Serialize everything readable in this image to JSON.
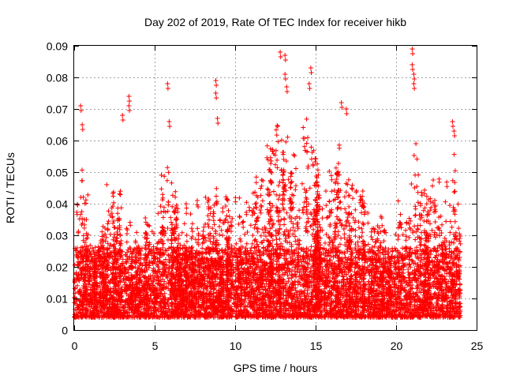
{
  "chart_data": {
    "type": "scatter",
    "title": "Day 202 of 2019, Rate Of TEC Index for receiver hikb",
    "xlabel": "GPS time / hours",
    "ylabel": "ROTI / TECUs",
    "xlim": [
      0,
      25
    ],
    "ylim": [
      0,
      0.09
    ],
    "xticks": [
      0,
      5,
      10,
      15,
      20,
      25
    ],
    "yticks": [
      0,
      0.01,
      0.02,
      0.03,
      0.04,
      0.05,
      0.06,
      0.07,
      0.08,
      0.09
    ],
    "xtick_labels": [
      "0",
      "5",
      "10",
      "15",
      "20",
      "25"
    ],
    "ytick_labels": [
      "0",
      "0.01",
      "0.02",
      "0.03",
      "0.04",
      "0.05",
      "0.06",
      "0.07",
      "0.08",
      "0.09"
    ],
    "grid": true,
    "marker": "+",
    "color": "#ff0000",
    "series": [
      {
        "name": "ROTI",
        "x_range": [
          0,
          24
        ],
        "baseline_low": 0.007,
        "baseline_high": 0.022,
        "notable_points": [
          {
            "x": 0.4,
            "y": 0.071
          },
          {
            "x": 0.5,
            "y": 0.065
          },
          {
            "x": 3.4,
            "y": 0.074
          },
          {
            "x": 3.4,
            "y": 0.071
          },
          {
            "x": 3.0,
            "y": 0.068
          },
          {
            "x": 5.8,
            "y": 0.078
          },
          {
            "x": 5.9,
            "y": 0.066
          },
          {
            "x": 8.8,
            "y": 0.079
          },
          {
            "x": 8.8,
            "y": 0.075
          },
          {
            "x": 8.9,
            "y": 0.067
          },
          {
            "x": 12.8,
            "y": 0.088
          },
          {
            "x": 13.1,
            "y": 0.087
          },
          {
            "x": 13.1,
            "y": 0.081
          },
          {
            "x": 13.2,
            "y": 0.077
          },
          {
            "x": 14.7,
            "y": 0.083
          },
          {
            "x": 14.6,
            "y": 0.078
          },
          {
            "x": 16.6,
            "y": 0.072
          },
          {
            "x": 16.9,
            "y": 0.07
          },
          {
            "x": 21.0,
            "y": 0.089
          },
          {
            "x": 21.0,
            "y": 0.084
          },
          {
            "x": 21.1,
            "y": 0.081
          },
          {
            "x": 21.1,
            "y": 0.078
          },
          {
            "x": 23.5,
            "y": 0.066
          },
          {
            "x": 23.6,
            "y": 0.063
          }
        ]
      }
    ]
  }
}
